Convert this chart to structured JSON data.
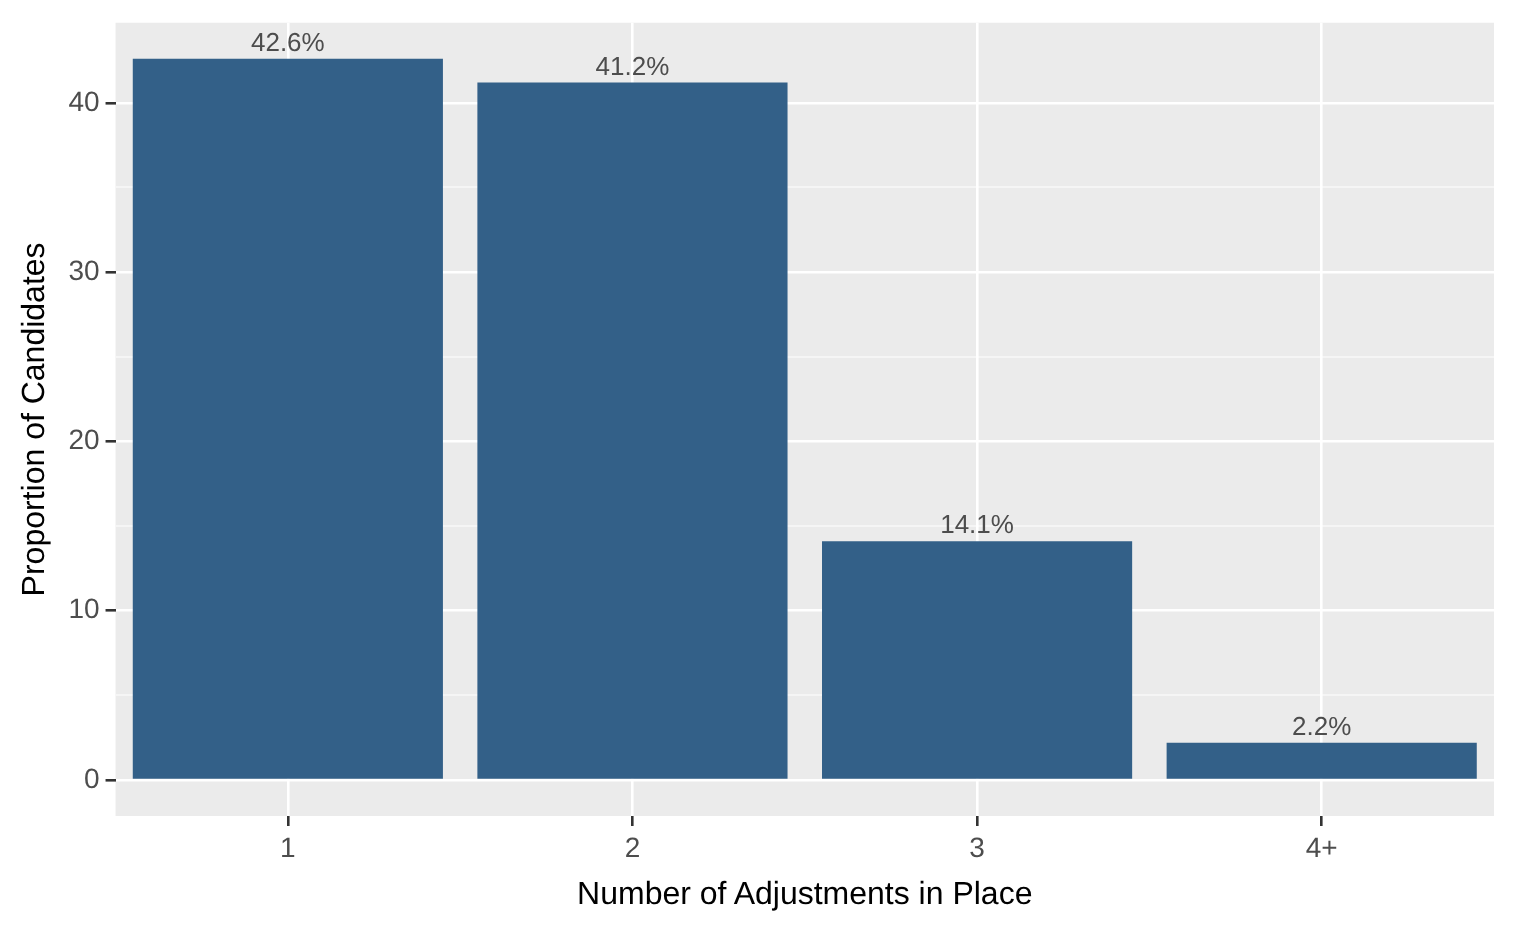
{
  "chart_data": {
    "type": "bar",
    "xlabel": "Number of Adjustments in Place",
    "ylabel": "Proportion of Candidates",
    "categories": [
      "1",
      "2",
      "3",
      "4+"
    ],
    "values": [
      42.6,
      41.2,
      14.1,
      2.2
    ],
    "value_labels": [
      "42.6%",
      "41.2%",
      "14.1%",
      "2.2%"
    ],
    "color": "#336088",
    "ylim": [
      -2.13,
      44.73
    ],
    "yticks": [
      0,
      {
        "value": 5,
        "label": null
      },
      10,
      {
        "value": 15,
        "label": null
      },
      20,
      {
        "value": 25,
        "label": null
      },
      30,
      {
        "value": 35,
        "label": null
      },
      40
    ],
    "grid": true
  }
}
